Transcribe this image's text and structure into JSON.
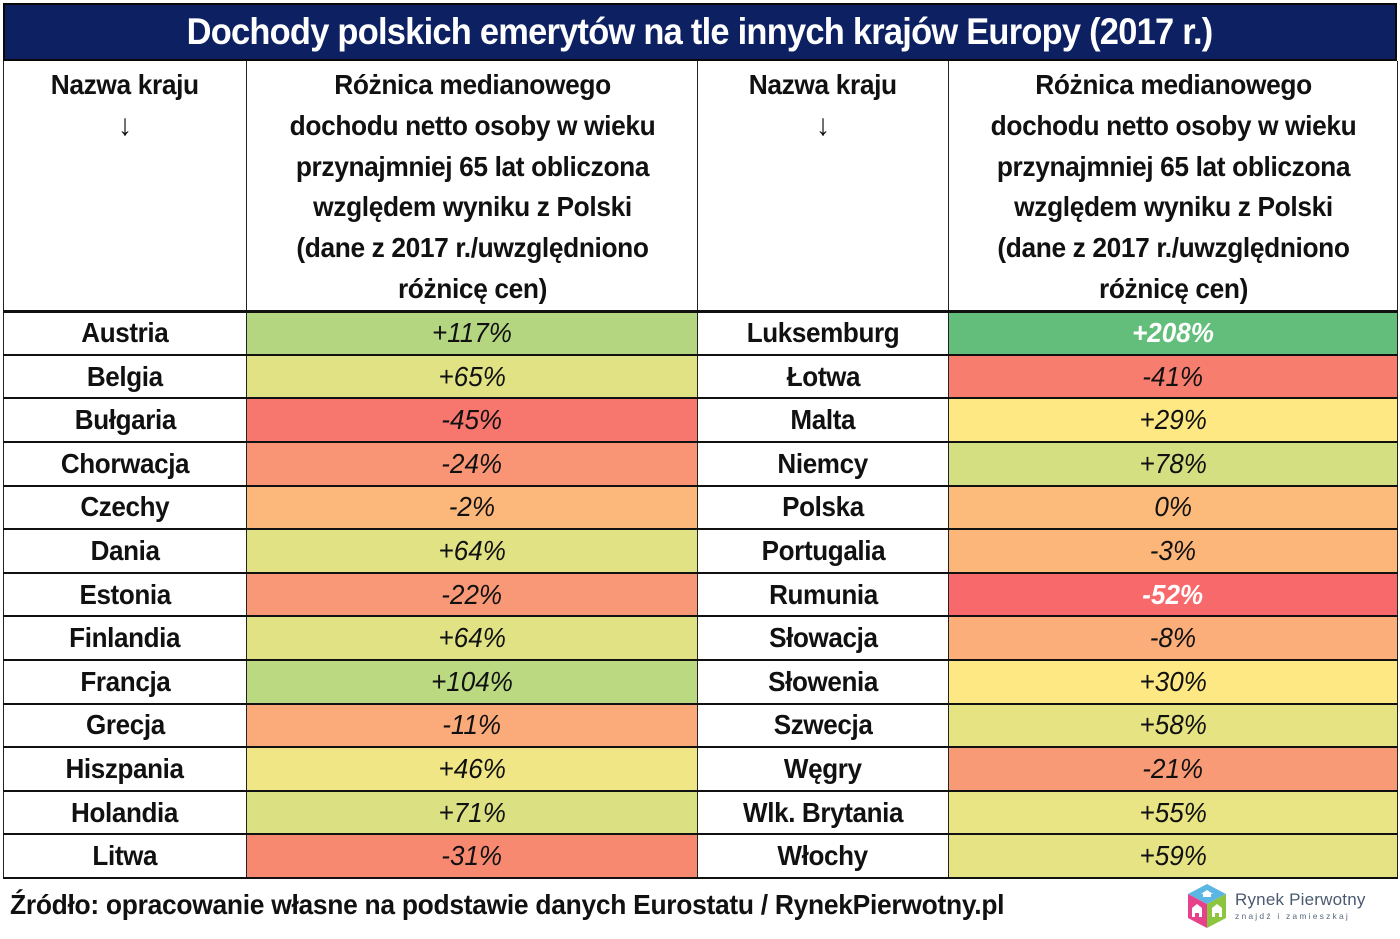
{
  "title": "Dochody polskich emerytów na tle innych krajów Europy (2017 r.)",
  "headers": {
    "country": "Nazwa kraju",
    "arrow": "↓",
    "value_lines": [
      "Różnica medianowego",
      "dochodu netto osoby w wieku",
      "przynajmniej 65 lat obliczona",
      "względem wyniku z Polski",
      "(dane z 2017 r./uwzględniono",
      "różnicę cen)"
    ]
  },
  "left_rows": [
    {
      "country": "Austria",
      "value": "+117%",
      "color": "#b4d680",
      "text_color": "#222222"
    },
    {
      "country": "Belgia",
      "value": "+65%",
      "color": "#e0e283",
      "text_color": "#222222"
    },
    {
      "country": "Bułgaria",
      "value": "-45%",
      "color": "#f7766e",
      "text_color": "#222222"
    },
    {
      "country": "Chorwacja",
      "value": "-24%",
      "color": "#f99575",
      "text_color": "#222222"
    },
    {
      "country": "Czechy",
      "value": "-2%",
      "color": "#fcb87a",
      "text_color": "#222222"
    },
    {
      "country": "Dania",
      "value": "+64%",
      "color": "#e0e283",
      "text_color": "#222222"
    },
    {
      "country": "Estonia",
      "value": "-22%",
      "color": "#f99876",
      "text_color": "#222222"
    },
    {
      "country": "Finlandia",
      "value": "+64%",
      "color": "#e0e283",
      "text_color": "#222222"
    },
    {
      "country": "Francja",
      "value": "+104%",
      "color": "#bad981",
      "text_color": "#222222"
    },
    {
      "country": "Grecja",
      "value": "-11%",
      "color": "#fbaa79",
      "text_color": "#222222"
    },
    {
      "country": "Hiszpania",
      "value": "+46%",
      "color": "#f0e685",
      "text_color": "#222222"
    },
    {
      "country": "Holandia",
      "value": "+71%",
      "color": "#dbe182",
      "text_color": "#222222"
    },
    {
      "country": "Litwa",
      "value": "-31%",
      "color": "#f88971",
      "text_color": "#222222"
    }
  ],
  "right_rows": [
    {
      "country": "Luksemburg",
      "value": "+208%",
      "color": "#63be7b",
      "text_color": "#ffffff"
    },
    {
      "country": "Łotwa",
      "value": "-41%",
      "color": "#f77d6f",
      "text_color": "#222222"
    },
    {
      "country": "Malta",
      "value": "+29%",
      "color": "#fde883",
      "text_color": "#222222"
    },
    {
      "country": "Niemcy",
      "value": "+78%",
      "color": "#d4df82",
      "text_color": "#222222"
    },
    {
      "country": "Polska",
      "value": "0%",
      "color": "#fcba7b",
      "text_color": "#222222"
    },
    {
      "country": "Portugalia",
      "value": "-3%",
      "color": "#fcb67a",
      "text_color": "#222222"
    },
    {
      "country": "Rumunia",
      "value": "-52%",
      "color": "#f8696b",
      "text_color": "#ffffff"
    },
    {
      "country": "Słowacja",
      "value": "-8%",
      "color": "#fbae79",
      "text_color": "#222222"
    },
    {
      "country": "Słowenia",
      "value": "+30%",
      "color": "#fee883",
      "text_color": "#222222"
    },
    {
      "country": "Szwecja",
      "value": "+58%",
      "color": "#e6e383",
      "text_color": "#222222"
    },
    {
      "country": "Węgry",
      "value": "-21%",
      "color": "#f99a76",
      "text_color": "#222222"
    },
    {
      "country": "Wlk. Brytania",
      "value": "+55%",
      "color": "#e9e484",
      "text_color": "#222222"
    },
    {
      "country": "Włochy",
      "value": "+59%",
      "color": "#e5e383",
      "text_color": "#222222"
    }
  ],
  "footer": {
    "source": "Źródło: opracowanie własne na podstawie danych Eurostatu / RynekPierwotny.pl"
  },
  "logo": {
    "name": "Rynek Pierwotny",
    "tagline": "znajdź i zamieszkaj",
    "colors": {
      "top": "#5bb6e3",
      "left": "#e8418c",
      "right": "#8cc63f"
    }
  },
  "chart_data": {
    "type": "table",
    "title": "Dochody polskich emerytów na tle innych krajów Europy (2017 r.)",
    "columns": [
      "Nazwa kraju",
      "Różnica medianowego dochodu netto osoby w wieku przynajmniej 65 lat obliczona względem wyniku z Polski (dane z 2017 r./uwzględniono różnicę cen)"
    ],
    "categories": [
      "Austria",
      "Belgia",
      "Bułgaria",
      "Chorwacja",
      "Czechy",
      "Dania",
      "Estonia",
      "Finlandia",
      "Francja",
      "Grecja",
      "Hiszpania",
      "Holandia",
      "Litwa",
      "Luksemburg",
      "Łotwa",
      "Malta",
      "Niemcy",
      "Polska",
      "Portugalia",
      "Rumunia",
      "Słowacja",
      "Słowenia",
      "Szwecja",
      "Węgry",
      "Wlk. Brytania",
      "Włochy"
    ],
    "values": [
      117,
      65,
      -45,
      -24,
      -2,
      64,
      -22,
      64,
      104,
      -11,
      46,
      71,
      -31,
      208,
      -41,
      29,
      78,
      0,
      -3,
      -52,
      -8,
      30,
      58,
      -21,
      55,
      59
    ],
    "unit": "%",
    "color_scale": {
      "min": "#f8696b",
      "mid": "#ffeb84",
      "max": "#63be7b"
    },
    "source": "Źródło: opracowanie własne na podstawie danych Eurostatu / RynekPierwotny.pl"
  }
}
